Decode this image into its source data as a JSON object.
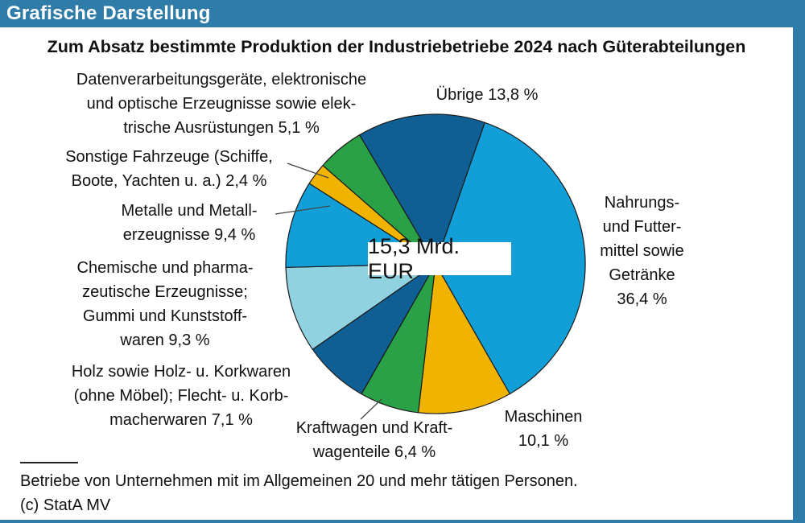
{
  "header": {
    "title": "Grafische Darstellung"
  },
  "frame_color": "#2e7ca7",
  "footer": {
    "footnote": "Betriebe von Unternehmen mit im Allgemeinen 20 und mehr tätigen Personen.",
    "copyright": "(c) StatA MV"
  },
  "chart_data": {
    "type": "pie",
    "title": "Zum Absatz bestimmte Produktion der Industriebetriebe 2024 nach Güterabteilungen",
    "center_label": "15,3 Mrd. EUR",
    "unit": "%",
    "total_label_value": "15,3 Mrd. EUR",
    "start_angle_deg": 19.2,
    "stroke": "#1a1a1a",
    "legend_position": "callouts-around-pie",
    "slices": [
      {
        "id": "nahrungsmittel",
        "value_pct": 36.4,
        "color": "#129fd8",
        "callout": "Nahrungs-\nund Futter-\nmittel sowie\nGetränke\n36,4 %"
      },
      {
        "id": "maschinen",
        "value_pct": 10.1,
        "color": "#f0b400",
        "callout": "Maschinen\n10,1 %"
      },
      {
        "id": "kraftwagen",
        "value_pct": 6.4,
        "color": "#2aa147",
        "callout": "Kraftwagen und Kraft-\nwagenteile 6,4 %"
      },
      {
        "id": "holz",
        "value_pct": 7.1,
        "color": "#0f5f94",
        "callout": "Holz sowie Holz- u. Korkwaren\n(ohne Möbel); Flecht- u. Korb-\nmacherwaren 7,1 %"
      },
      {
        "id": "chemische",
        "value_pct": 9.3,
        "color": "#91d2e0",
        "callout": "Chemische und pharma-\nzeutische Erzeugnisse;\nGummi und Kunststoff-\nwaren 9,3 %"
      },
      {
        "id": "metalle",
        "value_pct": 9.4,
        "color": "#129fd8",
        "callout": "Metalle und Metall-\nerzeugnisse 9,4 %"
      },
      {
        "id": "sonstige-fahrzeuge",
        "value_pct": 2.4,
        "color": "#f0b400",
        "callout": "Sonstige Fahrzeuge (Schiffe,\nBoote, Yachten u. a.) 2,4 %"
      },
      {
        "id": "datenverarbeitung",
        "value_pct": 5.1,
        "color": "#2aa147",
        "callout": "Datenverarbeitungsgeräte, elektronische\nund optische Erzeugnisse sowie elek-\ntrische Ausrüstungen 5,1 %"
      },
      {
        "id": "uebrige",
        "value_pct": 13.8,
        "color": "#0f5f94",
        "callout": "Übrige 13,8 %"
      }
    ]
  }
}
